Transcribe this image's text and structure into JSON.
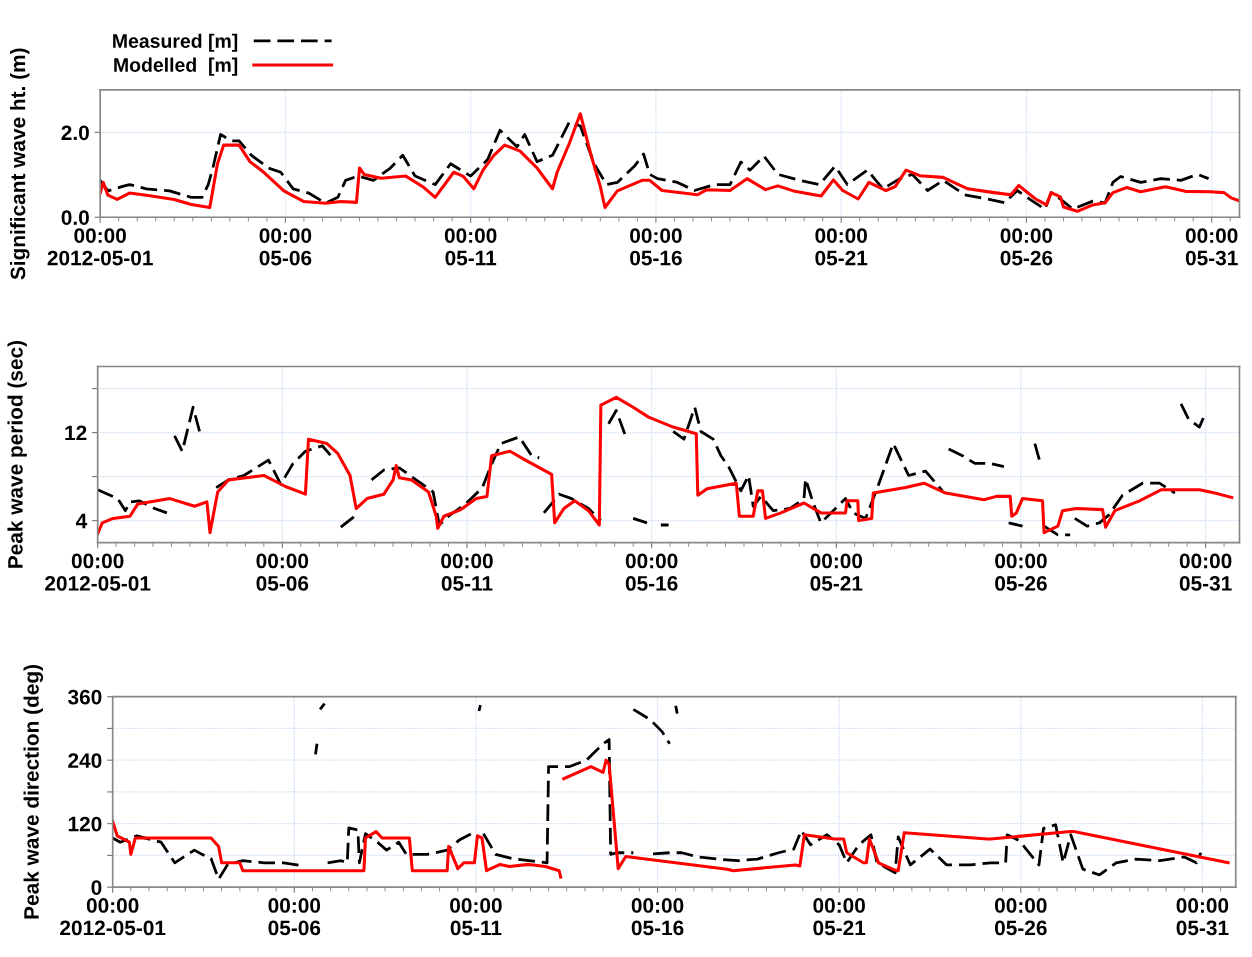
{
  "chart_data": [
    {
      "type": "line",
      "ylabel": "Significant wave ht. (m)",
      "legend": "top left",
      "grid": true,
      "marker": "none",
      "xlim": [
        "2012-05-01T00:00",
        "2012-05-31T18:00"
      ],
      "ylim": [
        0,
        3
      ],
      "xticks": [
        {
          "value": "2012-05-01",
          "label": "00:00\n2012-05-01"
        },
        {
          "value": "2012-05-06",
          "label": "00:00\n05-06"
        },
        {
          "value": "2012-05-11",
          "label": "00:00\n05-11"
        },
        {
          "value": "2012-05-16",
          "label": "00:00\n05-16"
        },
        {
          "value": "2012-05-21",
          "label": "00:00\n05-21"
        },
        {
          "value": "2012-05-26",
          "label": "00:00\n05-26"
        },
        {
          "value": "2012-05-31",
          "label": "00:00\n05-31"
        }
      ],
      "yticks": [
        {
          "value": 0,
          "label": "0.0"
        },
        {
          "value": 2,
          "label": "2.0"
        }
      ],
      "series": [
        {
          "name": "Measured [m]",
          "color": "#000000",
          "line_style": "dashed",
          "x": [
            "2012-05-01T00:00",
            "2012-05-01T05:00",
            "2012-05-01T14:00",
            "2012-05-01T19:00",
            "2012-05-02T06:00",
            "2012-05-02T21:00",
            "2012-05-03T11:00",
            "2012-05-03T18:00",
            "2012-05-03T22:00",
            "2012-05-04T01:00",
            "2012-05-04T06:00",
            "2012-05-04T13:00",
            "2012-05-04T18:00",
            "2012-05-05T02:00",
            "2012-05-05T13:00",
            "2012-05-05T21:00",
            "2012-05-06T05:00",
            "2012-05-06T15:00",
            "2012-05-07T02:00",
            "2012-05-07T10:00",
            "2012-05-07T15:00",
            "2012-05-07T23:00",
            "2012-05-08T09:00",
            "2012-05-08T20:00",
            "2012-05-09T04:00",
            "2012-05-09T12:00",
            "2012-05-10T01:00",
            "2012-05-10T11:00",
            "2012-05-11T00:00",
            "2012-05-11T11:00",
            "2012-05-11T19:00",
            "2012-05-12T06:00",
            "2012-05-12T11:00",
            "2012-05-12T19:00",
            "2012-05-13T05:00",
            "2012-05-13T16:00",
            "2012-05-13T23:00",
            "2012-05-14T08:00",
            "2012-05-14T16:00",
            "2012-05-14T23:00",
            "2012-05-15T10:00",
            "2012-05-15T16:00",
            "2012-05-15T20:00",
            "2012-05-16T01:00",
            "2012-05-16T14:00",
            "2012-05-17T01:00",
            "2012-05-17T14:00",
            "2012-05-18T00:00",
            "2012-05-18T07:00",
            "2012-05-18T13:00",
            "2012-05-18T22:00",
            "2012-05-19T07:00",
            "2012-05-19T21:00",
            "2012-05-20T10:00",
            "2012-05-20T20:00",
            "2012-05-21T04:00",
            "2012-05-21T17:00",
            "2012-05-22T03:00",
            "2012-05-22T14:00",
            "2012-05-22T22:00",
            "2012-05-23T08:00",
            "2012-05-23T18:00",
            "2012-05-24T08:00",
            "2012-05-24T23:00",
            "2012-05-25T10:00",
            "2012-05-25T18:00",
            "2012-05-26T04:00",
            "2012-05-26T12:00",
            "2012-05-26T16:00",
            "2012-05-26T22:00",
            "2012-05-27T06:00",
            "2012-05-27T19:00",
            "2012-05-28T03:00",
            "2012-05-28T08:00",
            "2012-05-28T13:00",
            "2012-05-29T02:00",
            "2012-05-29T15:00",
            "2012-05-30T04:00",
            "2012-05-30T15:00",
            "2012-05-30T22:00"
          ],
          "values": [
            0.87,
            0.62,
            0.72,
            0.77,
            0.67,
            0.62,
            0.47,
            0.47,
            0.77,
            1.16,
            1.95,
            1.8,
            1.8,
            1.46,
            1.16,
            1.06,
            0.67,
            0.57,
            0.33,
            0.47,
            0.87,
            0.97,
            0.87,
            1.16,
            1.46,
            0.97,
            0.77,
            1.26,
            0.97,
            1.36,
            2.05,
            1.66,
            1.95,
            1.31,
            1.46,
            2.25,
            2.15,
            1.26,
            0.77,
            0.82,
            1.2,
            1.49,
            1.01,
            0.91,
            0.82,
            0.63,
            0.77,
            0.77,
            1.3,
            1.11,
            1.44,
            1.01,
            0.87,
            0.77,
            1.2,
            0.77,
            1.11,
            0.67,
            0.91,
            1.01,
            0.63,
            0.87,
            0.53,
            0.43,
            0.34,
            0.63,
            0.38,
            0.19,
            0.58,
            0.43,
            0.19,
            0.38,
            0.34,
            0.82,
            0.96,
            0.82,
            0.91,
            0.87,
            1.01,
            0.91
          ]
        },
        {
          "name": "Modelled  [m]",
          "color": "#ff0000",
          "line_style": "solid",
          "x": [
            "2012-05-01T00:00",
            "2012-05-01T02:00",
            "2012-05-01T05:00",
            "2012-05-01T11:00",
            "2012-05-01T19:00",
            "2012-05-02T06:00",
            "2012-05-03T00:00",
            "2012-05-03T11:00",
            "2012-05-03T23:00",
            "2012-05-04T04:00",
            "2012-05-04T08:00",
            "2012-05-04T18:00",
            "2012-05-05T01:00",
            "2012-05-05T10:00",
            "2012-05-05T23:00",
            "2012-05-06T12:00",
            "2012-05-07T02:00",
            "2012-05-07T12:00",
            "2012-05-07T22:00",
            "2012-05-08T00:00",
            "2012-05-08T03:00",
            "2012-05-08T14:00",
            "2012-05-09T06:00",
            "2012-05-09T17:00",
            "2012-05-10T01:00",
            "2012-05-10T13:00",
            "2012-05-10T19:00",
            "2012-05-11T02:00",
            "2012-05-11T08:00",
            "2012-05-11T15:00",
            "2012-05-11T22:00",
            "2012-05-12T08:00",
            "2012-05-12T19:00",
            "2012-05-13T05:00",
            "2012-05-13T08:00",
            "2012-05-13T16:00",
            "2012-05-13T23:00",
            "2012-05-14T06:00",
            "2012-05-14T12:00",
            "2012-05-14T15:00",
            "2012-05-14T23:00",
            "2012-05-15T15:00",
            "2012-05-15T20:00",
            "2012-05-16T04:00",
            "2012-05-17T03:00",
            "2012-05-17T09:00",
            "2012-05-18T00:00",
            "2012-05-18T11:00",
            "2012-05-18T23:00",
            "2012-05-19T07:00",
            "2012-05-19T18:00",
            "2012-05-20T11:00",
            "2012-05-20T19:00",
            "2012-05-21T01:00",
            "2012-05-21T11:00",
            "2012-05-21T18:00",
            "2012-05-22T05:00",
            "2012-05-22T11:00",
            "2012-05-22T18:00",
            "2012-05-23T03:00",
            "2012-05-23T18:00",
            "2012-05-24T10:00",
            "2012-05-25T03:00",
            "2012-05-25T14:00",
            "2012-05-25T19:00",
            "2012-05-25T23:00",
            "2012-05-26T06:00",
            "2012-05-26T13:00",
            "2012-05-26T16:00",
            "2012-05-26T22:00",
            "2012-05-27T00:00",
            "2012-05-27T09:00",
            "2012-05-27T19:00",
            "2012-05-28T03:00",
            "2012-05-28T08:00",
            "2012-05-28T17:00",
            "2012-05-29T02:00",
            "2012-05-29T18:00",
            "2012-05-30T07:00",
            "2012-05-30T23:00",
            "2012-05-31T08:00",
            "2012-05-31T13:00",
            "2012-05-31T17:00"
          ],
          "values": [
            0.57,
            0.82,
            0.52,
            0.42,
            0.57,
            0.52,
            0.42,
            0.3,
            0.23,
            1.26,
            1.7,
            1.7,
            1.31,
            1.06,
            0.62,
            0.37,
            0.33,
            0.37,
            0.35,
            1.16,
            1.01,
            0.92,
            0.97,
            0.72,
            0.47,
            1.06,
            0.97,
            0.67,
            1.11,
            1.46,
            1.7,
            1.56,
            1.16,
            0.67,
            1.06,
            1.75,
            2.44,
            1.46,
            0.72,
            0.23,
            0.62,
            0.87,
            0.87,
            0.63,
            0.53,
            0.65,
            0.63,
            0.91,
            0.65,
            0.74,
            0.61,
            0.5,
            0.88,
            0.63,
            0.43,
            0.82,
            0.63,
            0.72,
            1.11,
            0.98,
            0.94,
            0.67,
            0.58,
            0.53,
            0.75,
            0.63,
            0.43,
            0.29,
            0.58,
            0.48,
            0.24,
            0.14,
            0.29,
            0.34,
            0.58,
            0.7,
            0.6,
            0.72,
            0.61,
            0.6,
            0.58,
            0.45,
            0.4
          ]
        }
      ]
    },
    {
      "type": "line",
      "ylabel": "Peak wave period (sec)",
      "grid": true,
      "marker": "none",
      "xlim": [
        "2012-05-01T00:00",
        "2012-05-31T22:00"
      ],
      "ylim": [
        2,
        18
      ],
      "xticks": [
        {
          "value": "2012-05-01",
          "label": "00:00\n2012-05-01"
        },
        {
          "value": "2012-05-06",
          "label": "00:00\n05-06"
        },
        {
          "value": "2012-05-11",
          "label": "00:00\n05-11"
        },
        {
          "value": "2012-05-16",
          "label": "00:00\n05-16"
        },
        {
          "value": "2012-05-21",
          "label": "00:00\n05-21"
        },
        {
          "value": "2012-05-26",
          "label": "00:00\n05-26"
        },
        {
          "value": "2012-05-31",
          "label": "00:00\n05-31"
        }
      ],
      "yticks": [
        4,
        {
          "value": 8,
          "label": null
        },
        12,
        {
          "value": 16,
          "label": null
        }
      ],
      "series": [
        {
          "color": "#000000",
          "line_style": "dashed",
          "x": [
            "2012-05-01T00:00",
            "2012-05-01T13:00",
            "2012-05-01T18:00",
            "2012-05-01T21:00",
            "2012-05-02T03:00",
            "2012-05-02T13:00",
            "2012-05-02T21:00",
            "2012-05-02T22:00",
            "2012-05-03T02:00",
            "2012-05-03T07:00",
            "2012-05-03T14:00",
            "2012-05-03T19:00",
            "2012-05-03T20:00",
            "2012-05-04T05:00",
            "2012-05-04T13:00",
            "2012-05-04T23:00",
            "2012-05-05T07:00",
            "2012-05-05T15:00",
            "2012-05-05T23:00",
            "2012-05-06T07:00",
            "2012-05-06T15:00",
            "2012-05-07T02:00",
            "2012-05-07T10:00",
            "2012-05-07T12:00",
            "2012-05-07T14:00",
            "2012-05-07T23:00",
            "2012-05-08T06:00",
            "2012-05-08T10:00",
            "2012-05-08T18:00",
            "2012-05-09T04:00",
            "2012-05-09T15:00",
            "2012-05-10T02:00",
            "2012-05-10T06:00",
            "2012-05-10T12:00",
            "2012-05-10T23:00",
            "2012-05-11T10:00",
            "2012-05-11T15:00",
            "2012-05-11T22:00",
            "2012-05-12T10:00",
            "2012-05-12T18:00",
            "2012-05-12T23:00",
            "2012-05-13T01:00",
            "2012-05-13T02:00",
            "2012-05-13T12:00",
            "2012-05-13T20:00",
            "2012-05-14T07:00",
            "2012-05-14T15:00",
            "2012-05-14T18:00",
            "2012-05-14T20:00",
            "2012-05-15T01:00",
            "2012-05-15T07:00",
            "2012-05-15T08:00",
            "2012-05-15T12:00",
            "2012-05-15T21:00",
            "2012-05-16T00:00",
            "2012-05-16T06:00",
            "2012-05-16T11:00",
            "2012-05-16T12:00",
            "2012-05-16T14:00",
            "2012-05-16T21:00",
            "2012-05-17T04:00",
            "2012-05-17T08:00",
            "2012-05-17T16:00",
            "2012-05-17T21:00",
            "2012-05-18T02:00",
            "2012-05-18T10:00",
            "2012-05-18T15:00",
            "2012-05-18T18:00",
            "2012-05-18T23:00",
            "2012-05-19T07:00",
            "2012-05-19T18:00",
            "2012-05-20T03:00",
            "2012-05-20T04:00",
            "2012-05-20T09:00",
            "2012-05-20T14:00",
            "2012-05-20T22:00",
            "2012-05-21T06:00",
            "2012-05-21T11:00",
            "2012-05-21T19:00",
            "2012-05-22T03:00",
            "2012-05-22T13:00",
            "2012-05-22T23:00",
            "2012-05-23T10:00",
            "2012-05-23T21:00",
            "2012-05-23T22:00",
            "2012-05-24T01:00",
            "2012-05-24T10:00",
            "2012-05-24T18:00",
            "2012-05-25T04:00",
            "2012-05-25T13:00",
            "2012-05-25T14:00",
            "2012-05-25T16:00",
            "2012-05-26T01:00",
            "2012-05-26T05:00",
            "2012-05-26T09:00",
            "2012-05-26T13:00",
            "2012-05-26T14:00",
            "2012-05-26T15:00",
            "2012-05-27T00:00",
            "2012-05-27T08:00",
            "2012-05-27T09:00",
            "2012-05-27T11:00",
            "2012-05-27T19:00",
            "2012-05-28T03:00",
            "2012-05-28T09:00",
            "2012-05-28T18:00",
            "2012-05-29T07:00",
            "2012-05-29T18:00",
            "2012-05-30T04:00",
            "2012-05-30T06:00",
            "2012-05-30T08:00",
            "2012-05-30T13:00",
            "2012-05-30T20:00",
            "2012-05-30T23:00"
          ],
          "values": [
            6.8,
            6.0,
            4.9,
            5.7,
            5.8,
            5.1,
            4.7,
            null,
            11.7,
            10.3,
            14.3,
            11.7,
            null,
            7.0,
            7.7,
            8.1,
            8.8,
            9.5,
            7.3,
            9.2,
            10.3,
            10.8,
            9.5,
            null,
            3.4,
            4.4,
            null,
            7.7,
            8.6,
            8.8,
            7.7,
            6.6,
            3.6,
            4.4,
            5.5,
            7.0,
            8.8,
            11.0,
            11.6,
            9.9,
            9.7,
            null,
            4.7,
            6.4,
            6.0,
            5.1,
            4.0,
            null,
            12.8,
            14.0,
            11.7,
            null,
            4.2,
            3.8,
            null,
            3.6,
            3.6,
            null,
            12.1,
            11.4,
            14.3,
            12.1,
            11.4,
            9.9,
            8.9,
            6.7,
            8.1,
            5.3,
            6.2,
            4.9,
            5.1,
            6.0,
            7.8,
            5.6,
            3.8,
            4.9,
            6.0,
            4.7,
            4.2,
            7.1,
            11.0,
            8.1,
            8.5,
            6.7,
            null,
            10.5,
            9.9,
            9.2,
            9.2,
            8.9,
            null,
            3.8,
            3.5,
            null,
            11.0,
            9.0,
            null,
            3.5,
            2.7,
            2.7,
            null,
            4.2,
            3.5,
            3.8,
            4.5,
            6.3,
            7.4,
            7.4,
            6.5,
            null,
            14.6,
            13.2,
            12.5,
            13.5
          ]
        },
        {
          "color": "#ff0000",
          "line_style": "solid",
          "x": [
            "2012-05-01T00:00",
            "2012-05-01T03:00",
            "2012-05-01T10:00",
            "2012-05-01T21:00",
            "2012-05-02T02:00",
            "2012-05-02T23:00",
            "2012-05-03T15:00",
            "2012-05-03T23:00",
            "2012-05-04T01:00",
            "2012-05-04T06:00",
            "2012-05-04T13:00",
            "2012-05-05T12:00",
            "2012-05-06T02:00",
            "2012-05-06T15:00",
            "2012-05-06T17:00",
            "2012-05-07T05:00",
            "2012-05-07T12:00",
            "2012-05-07T20:00",
            "2012-05-08T00:00",
            "2012-05-08T07:00",
            "2012-05-08T18:00",
            "2012-05-09T00:00",
            "2012-05-09T02:00",
            "2012-05-09T04:00",
            "2012-05-09T12:00",
            "2012-05-09T23:00",
            "2012-05-10T04:00",
            "2012-05-10T05:00",
            "2012-05-10T09:00",
            "2012-05-10T20:00",
            "2012-05-11T06:00",
            "2012-05-11T13:00",
            "2012-05-11T16:00",
            "2012-05-12T04:00",
            "2012-05-12T14:00",
            "2012-05-13T07:00",
            "2012-05-13T09:00",
            "2012-05-13T15:00",
            "2012-05-13T22:00",
            "2012-05-14T07:00",
            "2012-05-14T14:00",
            "2012-05-14T15:00",
            "2012-05-15T01:00",
            "2012-05-15T12:00",
            "2012-05-15T22:00",
            "2012-05-16T14:00",
            "2012-05-17T05:00",
            "2012-05-17T06:00",
            "2012-05-17T12:00",
            "2012-05-18T07:00",
            "2012-05-18T09:00",
            "2012-05-18T18:00",
            "2012-05-18T21:00",
            "2012-05-19T00:00",
            "2012-05-19T02:00",
            "2012-05-19T12:00",
            "2012-05-20T03:00",
            "2012-05-20T14:00",
            "2012-05-21T06:00",
            "2012-05-21T07:00",
            "2012-05-21T14:00",
            "2012-05-21T14:30",
            "2012-05-21T23:00",
            "2012-05-22T00:00",
            "2012-05-22T21:00",
            "2012-05-23T09:00",
            "2012-05-23T23:00",
            "2012-05-25T00:00",
            "2012-05-25T08:00",
            "2012-05-25T17:00",
            "2012-05-25T18:00",
            "2012-05-25T21:00",
            "2012-05-26T01:00",
            "2012-05-26T14:00",
            "2012-05-26T15:00",
            "2012-05-27T00:00",
            "2012-05-27T03:00",
            "2012-05-27T12:00",
            "2012-05-28T05:00",
            "2012-05-28T07:00",
            "2012-05-28T13:00",
            "2012-05-29T05:00",
            "2012-05-29T19:00",
            "2012-05-30T20:00",
            "2012-05-31T06:00",
            "2012-05-31T17:00"
          ],
          "values": [
            2.8,
            3.8,
            4.2,
            4.4,
            5.5,
            6.0,
            5.3,
            5.7,
            2.9,
            6.6,
            7.7,
            8.1,
            7.1,
            6.4,
            11.4,
            11.0,
            10.1,
            8.1,
            5.1,
            6.0,
            6.4,
            7.7,
            9.0,
            7.9,
            7.7,
            6.6,
            4.4,
            3.3,
            4.4,
            5.0,
            6.0,
            6.2,
            9.9,
            10.3,
            9.5,
            8.2,
            3.8,
            5.1,
            5.8,
            4.9,
            3.6,
            14.5,
            15.2,
            14.3,
            13.4,
            12.5,
            11.9,
            6.3,
            6.9,
            7.4,
            4.4,
            4.4,
            6.7,
            6.7,
            4.2,
            4.7,
            5.6,
            4.7,
            4.7,
            5.8,
            5.8,
            4.0,
            4.2,
            6.5,
            7.0,
            7.4,
            6.5,
            5.9,
            6.2,
            6.2,
            4.4,
            4.7,
            6.0,
            5.8,
            2.9,
            3.5,
            4.9,
            5.1,
            5.0,
            3.4,
            4.9,
            5.8,
            6.8,
            6.8,
            6.5,
            6.1
          ]
        }
      ]
    },
    {
      "type": "line",
      "ylabel": "Peak wave direction (deg)",
      "grid": true,
      "marker": "none",
      "xlim": [
        "2012-05-01T00:00",
        "2012-05-31T22:00"
      ],
      "ylim": [
        0,
        360
      ],
      "xticks": [
        {
          "value": "2012-05-01",
          "label": "00:00\n2012-05-01"
        },
        {
          "value": "2012-05-06",
          "label": "00:00\n05-06"
        },
        {
          "value": "2012-05-11",
          "label": "00:00\n05-11"
        },
        {
          "value": "2012-05-16",
          "label": "00:00\n05-16"
        },
        {
          "value": "2012-05-21",
          "label": "00:00\n05-21"
        },
        {
          "value": "2012-05-26",
          "label": "00:00\n05-26"
        },
        {
          "value": "2012-05-31",
          "label": "00:00\n05-31"
        }
      ],
      "yticks": [
        0,
        {
          "value": 60,
          "label": null
        },
        120,
        {
          "value": 180,
          "label": null
        },
        240,
        {
          "value": 300,
          "label": null
        },
        360
      ],
      "series": [
        {
          "color": "#000000",
          "line_style": "dashed",
          "x": [
            "2012-05-01T00:00",
            "2012-05-01T05:00",
            "2012-05-01T16:00",
            "2012-05-02T08:00",
            "2012-05-02T17:00",
            "2012-05-03T06:00",
            "2012-05-03T11:00",
            "2012-05-03T17:00",
            "2012-05-03T22:00",
            "2012-05-04T04:00",
            "2012-05-04T14:00",
            "2012-05-05T04:00",
            "2012-05-05T17:00",
            "2012-05-06T07:00",
            "2012-05-06T12:00",
            "2012-05-06T14:00",
            "2012-05-06T15:00",
            "2012-05-06T16:00",
            "2012-05-06T17:00",
            "2012-05-06T20:00",
            "2012-05-06T21:00",
            "2012-05-06T22:00",
            "2012-05-07T07:00",
            "2012-05-07T11:00",
            "2012-05-07T12:00",
            "2012-05-07T18:00",
            "2012-05-07T19:00",
            "2012-05-07T23:00",
            "2012-05-08T07:00",
            "2012-05-08T13:00",
            "2012-05-08T21:00",
            "2012-05-09T02:00",
            "2012-05-09T16:00",
            "2012-05-10T05:00",
            "2012-05-10T13:00",
            "2012-05-10T21:00",
            "2012-05-11T00:00",
            "2012-05-11T02:00",
            "2012-05-11T03:00",
            "2012-05-11T04:00",
            "2012-05-11T05:00",
            "2012-05-11T13:00",
            "2012-05-12T00:00",
            "2012-05-12T11:00",
            "2012-05-12T23:00",
            "2012-05-13T00:00",
            "2012-05-13T14:00",
            "2012-05-14T01:00",
            "2012-05-14T12:00",
            "2012-05-14T16:00",
            "2012-05-14T17:00",
            "2012-05-14T21:00",
            "2012-05-15T08:00",
            "2012-05-15T09:00",
            "2012-05-15T21:00",
            "2012-05-16T08:00",
            "2012-05-16T16:00",
            "2012-05-17T03:00",
            "2012-05-17T16:00",
            "2012-05-18T05:00",
            "2012-05-18T18:00",
            "2012-05-19T08:00",
            "2012-05-19T18:00",
            "2012-05-19T23:00",
            "2012-05-20T05:00",
            "2012-05-20T16:00",
            "2012-05-21T00:00",
            "2012-05-21T05:00",
            "2012-05-21T13:00",
            "2012-05-21T21:00",
            "2012-05-22T01:00",
            "2012-05-22T13:00",
            "2012-05-22T15:00",
            "2012-05-22T23:00",
            "2012-05-23T12:00",
            "2012-05-23T23:00",
            "2012-05-24T15:00",
            "2012-05-25T04:00",
            "2012-05-25T14:00",
            "2012-05-25T15:00",
            "2012-05-25T23:00",
            "2012-05-26T12:00",
            "2012-05-26T15:00",
            "2012-05-26T23:00",
            "2012-05-27T04:00",
            "2012-05-27T09:00",
            "2012-05-27T17:00",
            "2012-05-28T04:00",
            "2012-05-28T15:00",
            "2012-05-29T04:00",
            "2012-05-29T20:00",
            "2012-05-30T12:00",
            "2012-05-30T20:00",
            "2012-05-30T23:00"
          ],
          "values": [
            93,
            85,
            97,
            85,
            46,
            70,
            62,
            54,
            15,
            43,
            50,
            46,
            46,
            40,
            null,
            251,
            271,
            null,
            336,
            347,
            null,
            46,
            50,
            46,
            112,
            108,
            46,
            101,
            85,
            70,
            85,
            62,
            62,
            70,
            89,
            101,
            null,
            333,
            344,
            null,
            101,
            62,
            54,
            50,
            46,
            228,
            228,
            240,
            271,
            279,
            62,
            65,
            65,
            null,
            63,
            65,
            65,
            57,
            53,
            50,
            53,
            65,
            72,
            107,
            80,
            99,
            80,
            46,
            80,
            99,
            46,
            27,
            95,
            42,
            72,
            42,
            42,
            46,
            46,
            99,
            88,
            42,
            111,
            118,
            46,
            99,
            34,
            23,
            46,
            53,
            50,
            57,
            46,
            65
          ]
        },
        {
          "color": "#000000",
          "line_style": "dashed",
          "x": [
            "2012-05-15T08:00",
            "2012-05-15T19:00",
            "2012-05-16T03:00",
            "2012-05-16T08:00",
            "2012-05-16T10:00",
            "2012-05-16T12:00",
            "2012-05-16T13:00"
          ],
          "values": [
            336,
            317,
            294,
            271,
            null,
            343,
            328
          ]
        },
        {
          "color": "#ff0000",
          "line_style": "solid",
          "x": [
            "2012-05-01T00:00",
            "2012-05-01T03:00",
            "2012-05-01T11:00",
            "2012-05-01T12:00",
            "2012-05-01T15:00",
            "2012-05-03T17:00",
            "2012-05-03T22:00",
            "2012-05-04T00:00",
            "2012-05-04T12:00",
            "2012-05-04T14:00",
            "2012-05-07T22:00",
            "2012-05-07T23:00",
            "2012-05-08T06:00",
            "2012-05-08T10:00",
            "2012-05-09T04:00",
            "2012-05-09T06:00",
            "2012-05-10T05:00",
            "2012-05-10T06:00",
            "2012-05-10T12:00",
            "2012-05-10T16:00",
            "2012-05-10T23:00",
            "2012-05-11T01:00",
            "2012-05-11T04:00",
            "2012-05-11T07:00",
            "2012-05-11T16:00",
            "2012-05-11T22:00",
            "2012-05-12T11:00",
            "2012-05-12T22:00",
            "2012-05-13T07:00",
            "2012-05-13T08:00",
            "2012-05-13T09:00",
            "2012-05-13T10:00",
            "2012-05-14T04:00",
            "2012-05-14T12:00",
            "2012-05-14T14:00",
            "2012-05-14T16:00",
            "2012-05-14T22:00",
            "2012-05-15T03:00",
            "2012-05-17T22:00",
            "2012-05-18T02:00",
            "2012-05-19T19:00",
            "2012-05-19T22:00",
            "2012-05-20T01:00",
            "2012-05-20T21:00",
            "2012-05-21T03:00",
            "2012-05-21T05:00",
            "2012-05-21T16:00",
            "2012-05-21T18:00",
            "2012-05-21T20:00",
            "2012-05-22T02:00",
            "2012-05-22T12:00",
            "2012-05-22T15:00",
            "2012-05-22T19:00",
            "2012-05-25T02:00",
            "2012-05-25T04:00",
            "2012-05-27T09:00",
            "2012-05-27T11:00",
            "2012-05-31T17:00"
          ],
          "values": [
            124,
            97,
            85,
            62,
            93,
            93,
            77,
            46,
            46,
            31,
            31,
            93,
            105,
            93,
            93,
            31,
            31,
            77,
            35,
            46,
            46,
            97,
            93,
            31,
            43,
            39,
            43,
            39,
            31,
            19,
            null,
            205,
            228,
            217,
            240,
            232,
            35,
            58,
            34,
            31,
            42,
            40,
            99,
            91,
            91,
            65,
            46,
            46,
            91,
            46,
            33,
            31,
            103,
            91,
            91,
            105,
            105,
            46
          ]
        }
      ]
    }
  ]
}
